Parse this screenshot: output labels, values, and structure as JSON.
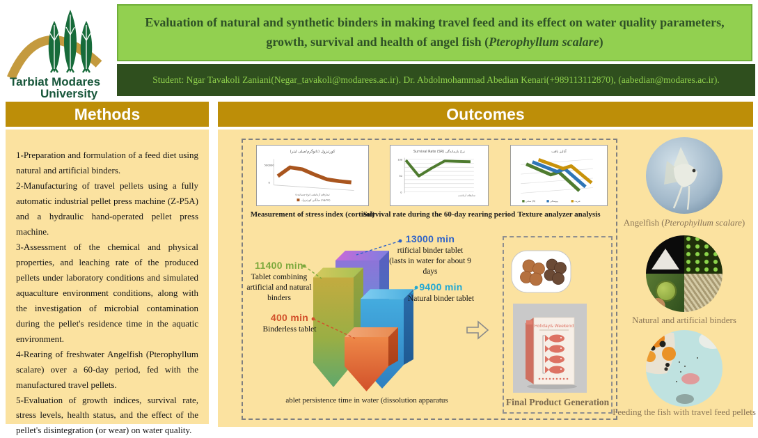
{
  "colors": {
    "accent_green": "#92D050",
    "dark_green_bar": "#2F4F1E",
    "gold_header": "#BD8E08",
    "cream_panel": "#FBE2A0"
  },
  "header": {
    "university_line1": "Tarbiat Modares",
    "university_line2": "University",
    "title_text": "Evaluation of natural and synthetic binders in making travel feed and its effect on water quality parameters, growth, survival and health of angel fish (",
    "title_species": "Pterophyllum scalare",
    "title_close": ")",
    "student_line": "Student: Ngar Tavakoli Zaniani(Negar_tavakoli@modarees.ac.ir). Dr. Abdolmohammad Abedian Kenari(+989113112870), (aabedian@modares.ac.ir)."
  },
  "methods": {
    "title": "Methods",
    "items": [
      "1-Preparation and formulation of a feed diet using natural and artificial binders.",
      "2-Manufacturing of travel pellets using a fully automatic industrial pellet press machine (Z-P5A) and a hydraulic hand-operated pellet press machine.",
      "3-Assessment of the chemical and physical properties, and leaching rate of the produced pellets under laboratory conditions and simulated aquaculture environment conditions, along with the investigation of microbial contamination during the pellet's residence time in the aquatic environment.",
      "4-Rearing of freshwater Angelfish (Pterophyllum scalare) over a 60-day period, fed with the manufactured travel pellets.",
      "5-Evaluation of growth indices, survival rate, stress levels, health status, and the effect of the pellet's disintegration (or wear) on water quality."
    ]
  },
  "outcomes": {
    "title": "Outcomes",
    "bar_labels": [
      {
        "value": "13000 min",
        "desc": "rtificial binder tablet (lasts in water for about 9 days",
        "color": "#2E62C8"
      },
      {
        "value": "11400 min",
        "desc": "Tablet combining artificial and natural binders",
        "color": "#7CA83C"
      },
      {
        "value": "9400 min",
        "desc": "Natural binder tablet",
        "color": "#22A8D2"
      },
      {
        "value": "400 min",
        "desc": "Binderless tablet",
        "color": "#D2512A"
      }
    ],
    "final_product": {
      "caption": "Final Product Generation",
      "box_title": "Holiday& Weekend"
    },
    "gallery": {
      "items": [
        {
          "caption_text": "Angelfish (",
          "caption_italic": "Pterophyllum scalare",
          "caption_end": ")"
        },
        {
          "caption_text": "Natural and artificial binders",
          "caption_italic": "",
          "caption_end": ""
        },
        {
          "caption_text": "Feeding the fish with travel feed pellets",
          "caption_italic": "",
          "caption_end": ""
        }
      ]
    }
  },
  "chart_data": [
    {
      "id": "cortisol",
      "type": "line",
      "title": "کورتیزول (نانوگرم/میلی لیتر)",
      "caption": "Measurement of stress index (cortisol)",
      "legend": "میانگین کورتیزول (ng/ml)",
      "xnote": "تیمارهای آزمایشی (نوع چسباننده)",
      "ylim": [
        0,
        100
      ],
      "series": [
        {
          "name": "Average cortisol",
          "color": "#A9551E",
          "values": [
            50,
            78,
            72,
            55,
            40,
            34,
            30
          ]
        }
      ]
    },
    {
      "id": "survival",
      "type": "line",
      "title": "Survival Rate (SR) نرخ بازماندگی",
      "caption": "Survival rate during the 60-day rearing period",
      "xnote": "تیمارهای آزمایشی",
      "ylim": [
        0,
        100
      ],
      "series": [
        {
          "name": "Survival rate (%)",
          "color": "#4E7B2F",
          "values": [
            97,
            55,
            76,
            95,
            94,
            93
          ]
        }
      ]
    },
    {
      "id": "texture",
      "type": "line",
      "title": "آنالیز بافت",
      "caption": "Texture analyzer analysis",
      "legend": [
        "سختی (N)",
        "پیوستگی",
        "فنریت"
      ],
      "ylim": [
        0,
        100
      ],
      "series": [
        {
          "name": "series-green",
          "color": "#4E7B2F",
          "values": [
            85,
            60,
            66,
            22
          ]
        },
        {
          "name": "series-blue",
          "color": "#2E75B6",
          "values": [
            87,
            64,
            70,
            28
          ]
        },
        {
          "name": "series-yellow",
          "color": "#C8920A",
          "values": [
            89,
            68,
            74,
            34
          ]
        }
      ]
    },
    {
      "id": "persistence",
      "type": "bar",
      "caption": "ablet persistence time in water (dissolution apparatus",
      "unit": "min",
      "categories": [
        "Binderless tablet",
        "Natural binder tablet",
        "Tablet combining artificial and natural binders",
        "Artificial binder tablet"
      ],
      "values": [
        400,
        9400,
        11400,
        13000
      ]
    }
  ]
}
